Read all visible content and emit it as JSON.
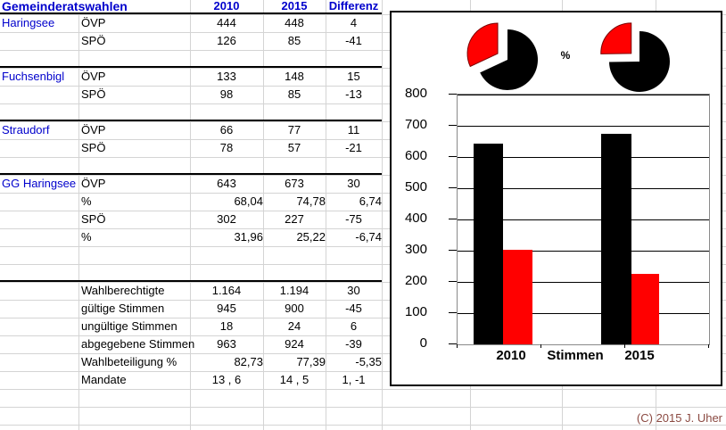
{
  "sheet": {
    "title": "Gemeinderatswahlen",
    "columns": [
      "2010",
      "2015",
      "Differenz"
    ],
    "rows": [
      {
        "name": "Haringsee",
        "label": "ÖVP",
        "v": [
          "444",
          "448",
          "4"
        ]
      },
      {
        "name": "",
        "label": "SPÖ",
        "v": [
          "126",
          "85",
          "-41"
        ]
      },
      {
        "sep": true
      },
      {
        "name": "Fuchsenbigl",
        "label": "ÖVP",
        "v": [
          "133",
          "148",
          "15"
        ]
      },
      {
        "name": "",
        "label": "SPÖ",
        "v": [
          "98",
          "85",
          "-13"
        ]
      },
      {
        "sep": true
      },
      {
        "name": "Straudorf",
        "label": "ÖVP",
        "v": [
          "66",
          "77",
          "11"
        ]
      },
      {
        "name": "",
        "label": "SPÖ",
        "v": [
          "78",
          "57",
          "-21"
        ]
      },
      {
        "sep": true
      },
      {
        "name": "GG Haringsee",
        "label": "ÖVP",
        "v": [
          "643",
          "673",
          "30"
        ]
      },
      {
        "name": "",
        "label": "%",
        "v": [
          "68,04",
          "74,78",
          "6,74"
        ],
        "align": "right"
      },
      {
        "name": "",
        "label": "SPÖ",
        "v": [
          "302",
          "227",
          "-75"
        ]
      },
      {
        "name": "",
        "label": "%",
        "v": [
          "31,96",
          "25,22",
          "-6,74"
        ],
        "align": "right"
      },
      {
        "blank": true
      },
      {
        "sep": true
      },
      {
        "name": "",
        "label": "Wahlberechtigte",
        "v": [
          "1.164",
          "1.194",
          "30"
        ]
      },
      {
        "name": "",
        "label": "gültige Stimmen",
        "v": [
          "945",
          "900",
          "-45"
        ]
      },
      {
        "name": "",
        "label": "ungültige Stimmen",
        "v": [
          "18",
          "24",
          "6"
        ]
      },
      {
        "name": "",
        "label": "abgegebene Stimmen",
        "v": [
          "963",
          "924",
          "-39"
        ]
      },
      {
        "name": "",
        "label": "Wahlbeteiligung %",
        "v": [
          "82,73",
          "77,39",
          "-5,35"
        ],
        "align": "right"
      },
      {
        "name": "",
        "label": "Mandate",
        "v": [
          "13 , 6",
          "14 , 5",
          "1, -1"
        ]
      },
      {
        "blank": true
      },
      {
        "blank": true
      }
    ]
  },
  "chart": {
    "percent_label": "%",
    "colors": {
      "ovp": "#000000",
      "spo": "#ff0000"
    }
  },
  "chart_data": [
    {
      "type": "pie",
      "year": "2010",
      "unit": "%",
      "series": [
        {
          "name": "ÖVP",
          "value": 68.04,
          "color": "#000000"
        },
        {
          "name": "SPÖ",
          "value": 31.96,
          "color": "#ff0000",
          "exploded": true
        }
      ]
    },
    {
      "type": "pie",
      "year": "2015",
      "unit": "%",
      "series": [
        {
          "name": "ÖVP",
          "value": 74.78,
          "color": "#000000"
        },
        {
          "name": "SPÖ",
          "value": 25.22,
          "color": "#ff0000",
          "exploded": true
        }
      ]
    },
    {
      "type": "bar",
      "categories": [
        "2010",
        "2015"
      ],
      "series": [
        {
          "name": "ÖVP",
          "values": [
            643,
            673
          ],
          "color": "#000000"
        },
        {
          "name": "SPÖ",
          "values": [
            302,
            227
          ],
          "color": "#ff0000"
        }
      ],
      "xlabel": "Stimmen",
      "ylabel": "",
      "ylim": [
        0,
        800
      ],
      "ytick_step": 100,
      "grid": true,
      "legend": "none"
    }
  ],
  "footer": {
    "copyright": "(C) 2015 J. Uher"
  }
}
